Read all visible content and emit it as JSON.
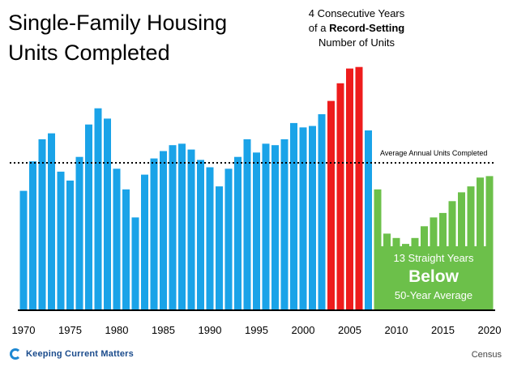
{
  "title_line1": "Single-Family Housing",
  "title_line2": "Units Completed",
  "annotation_top": {
    "line1": "4 Consecutive Years",
    "line2_prefix": "of a ",
    "line2_bold": "Record-Setting",
    "line3": "Number of Units"
  },
  "average_label": "Average Annual Units Completed",
  "below_annotation": {
    "line1": "13 Straight Years",
    "line2": "Below",
    "line3": "50-Year Average"
  },
  "footer": {
    "logo_text": "Keeping Current Matters",
    "source": "Census"
  },
  "colors": {
    "normal": "#1aa3e8",
    "record": "#ee1c1c",
    "below": "#6cc04a",
    "axis": "#000000"
  },
  "chart_data": {
    "type": "bar",
    "x": [
      1970,
      1971,
      1972,
      1973,
      1974,
      1975,
      1976,
      1977,
      1978,
      1979,
      1980,
      1981,
      1982,
      1983,
      1984,
      1985,
      1986,
      1987,
      1988,
      1989,
      1990,
      1991,
      1992,
      1993,
      1994,
      1995,
      1996,
      1997,
      1998,
      1999,
      2000,
      2001,
      2002,
      2003,
      2004,
      2005,
      2006,
      2007,
      2008,
      2009,
      2010,
      2011,
      2012,
      2013,
      2014,
      2015,
      2016,
      2017,
      2018,
      2019,
      2020
    ],
    "values": [
      0.81,
      1.01,
      1.16,
      1.2,
      0.94,
      0.88,
      1.04,
      1.26,
      1.37,
      1.3,
      0.96,
      0.82,
      0.63,
      0.92,
      1.03,
      1.08,
      1.12,
      1.13,
      1.09,
      1.02,
      0.97,
      0.84,
      0.96,
      1.04,
      1.16,
      1.07,
      1.13,
      1.12,
      1.16,
      1.27,
      1.24,
      1.25,
      1.33,
      1.42,
      1.54,
      1.64,
      1.65,
      1.22,
      0.82,
      0.52,
      0.49,
      0.45,
      0.49,
      0.57,
      0.63,
      0.66,
      0.74,
      0.8,
      0.84,
      0.9,
      0.91
    ],
    "categories_status": [
      "normal",
      "normal",
      "normal",
      "normal",
      "normal",
      "normal",
      "normal",
      "normal",
      "normal",
      "normal",
      "normal",
      "normal",
      "normal",
      "normal",
      "normal",
      "normal",
      "normal",
      "normal",
      "normal",
      "normal",
      "normal",
      "normal",
      "normal",
      "normal",
      "normal",
      "normal",
      "normal",
      "normal",
      "normal",
      "normal",
      "normal",
      "normal",
      "normal",
      "record",
      "record",
      "record",
      "record",
      "normal",
      "below",
      "below",
      "below",
      "below",
      "below",
      "below",
      "below",
      "below",
      "below",
      "below",
      "below",
      "below",
      "below"
    ],
    "average": 1.0,
    "ylim": [
      0,
      1.72
    ],
    "xtick_labels": [
      "1970",
      "1975",
      "1980",
      "1985",
      "1990",
      "1995",
      "2000",
      "2005",
      "2010",
      "2015",
      "2020"
    ],
    "xtick_years": [
      1970,
      1975,
      1980,
      1985,
      1990,
      1995,
      2000,
      2005,
      2010,
      2015,
      2020
    ],
    "title": "Single-Family Housing Units Completed",
    "xlabel": "",
    "ylabel": "",
    "grid": false
  }
}
